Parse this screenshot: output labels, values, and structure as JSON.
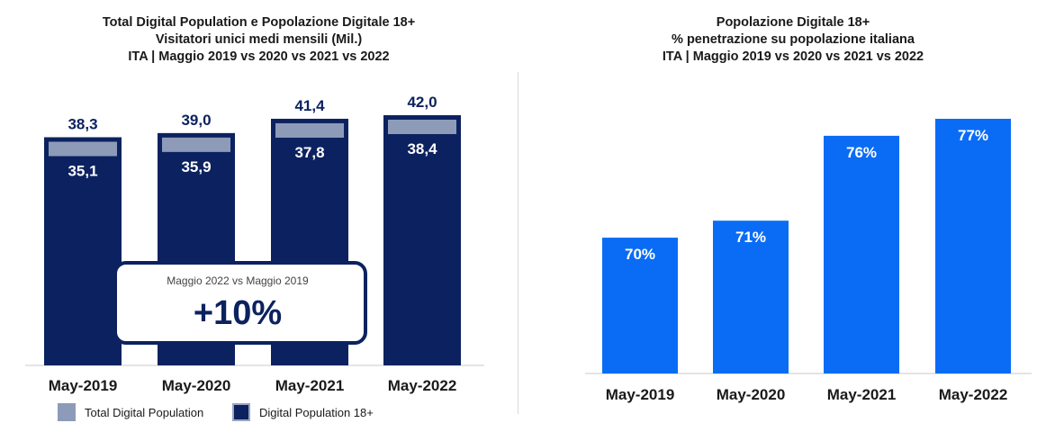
{
  "chart_data": [
    {
      "type": "bar",
      "title": "Total Digital Population e Popolazione Digitale 18+",
      "subtitle": "Visitatori unici medi mensili (Mil.)",
      "subtitle2": "ITA | Maggio 2019 vs 2020 vs 2021 vs 2022",
      "categories": [
        "May-2019",
        "May-2020",
        "May-2021",
        "May-2022"
      ],
      "series": [
        {
          "name": "Total Digital Population",
          "values": [
            38.3,
            39.0,
            41.4,
            42.0
          ],
          "labels": [
            "38,3",
            "39,0",
            "41,4",
            "42,0"
          ],
          "color": "#8e9bb8"
        },
        {
          "name": "Digital Population 18+",
          "values": [
            35.1,
            35.9,
            37.8,
            38.4
          ],
          "labels": [
            "35,1",
            "35,9",
            "37,8",
            "38,4"
          ],
          "color": "#0c2260"
        }
      ],
      "callout": {
        "caption": "Maggio 2022 vs Maggio 2019",
        "value": "+10%"
      },
      "ylim": [
        0,
        42.0
      ]
    },
    {
      "type": "bar",
      "title": "Popolazione Digitale 18+",
      "subtitle": "% penetrazione su popolazione italiana",
      "subtitle2": "ITA | Maggio 2019 vs 2020 vs 2021 vs 2022",
      "categories": [
        "May-2019",
        "May-2020",
        "May-2021",
        "May-2022"
      ],
      "values": [
        70,
        71,
        76,
        77
      ],
      "labels": [
        "70%",
        "71%",
        "76%",
        "77%"
      ],
      "color": "#0a6cf5",
      "ylim": [
        0,
        77
      ]
    }
  ]
}
